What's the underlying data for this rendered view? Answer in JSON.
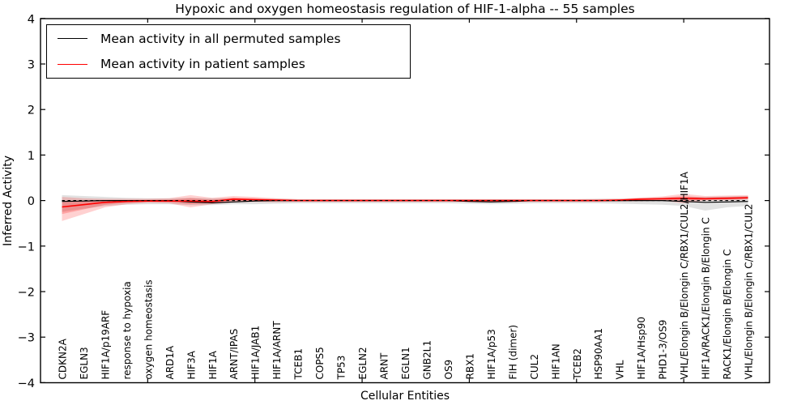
{
  "title": "Hypoxic and oxygen homeostasis regulation of HIF-1-alpha -- 55 samples",
  "axes": {
    "xlabel": "Cellular Entities",
    "ylabel": "Inferred Activity",
    "ytick_labels": [
      "4",
      "3",
      "2",
      "1",
      "0",
      "−1",
      "−2",
      "−3",
      "−4"
    ]
  },
  "legend": {
    "items": [
      {
        "label": "Mean activity in all permuted samples",
        "color": "#000000"
      },
      {
        "label": "Mean activity in patient samples",
        "color": "#ff0000"
      }
    ]
  },
  "colors": {
    "permuted_line": "#000000",
    "patient_line": "#ff0000",
    "permuted_band": "#aaaaaa",
    "patient_band": "#ff0000",
    "baseline": "#000000",
    "background": "#ffffff"
  },
  "chart_data": {
    "type": "line",
    "title": "Hypoxic and oxygen homeostasis regulation of HIF-1-alpha -- 55 samples",
    "xlabel": "Cellular Entities",
    "ylabel": "Inferred Activity",
    "ylim": [
      -4,
      4
    ],
    "yticks": [
      -4,
      -3,
      -2,
      -1,
      0,
      1,
      2,
      3,
      4
    ],
    "grid": false,
    "legend_position": "upper left",
    "baseline": {
      "y": 0,
      "style": "dashed",
      "color": "#000000"
    },
    "categories": [
      "CDKN2A",
      "EGLN3",
      "HIF1A/p19ARF",
      "response to hypoxia",
      "oxygen homeostasis",
      "ARD1A",
      "HIF3A",
      "HIF1A",
      "ARNT/IPAS",
      "HIF1A/JAB1",
      "HIF1A/ARNT",
      "TCEB1",
      "COPS5",
      "TP53",
      "EGLN2",
      "ARNT",
      "EGLN1",
      "GNB2L1",
      "OS9",
      "RBX1",
      "HIF1A/p53",
      "FIH (dimer)",
      "CUL2",
      "HIF1AN",
      "TCEB2",
      "HSP90AA1",
      "VHL",
      "HIF1A/Hsp90",
      "PHD1-3/OS9",
      "VHL/Elongin B/Elongin C/RBX1/CUL2/HIF1A",
      "HIF1A/RACK1/Elongin B/Elongin C",
      "RACK1/Elongin B/Elongin C",
      "VHL/Elongin B/Elongin C/RBX1/CUL2"
    ],
    "series": [
      {
        "name": "Mean activity in all permuted samples",
        "color": "#000000",
        "style": "solid",
        "values": [
          -0.02,
          -0.01,
          0,
          0,
          0,
          0,
          -0.03,
          -0.05,
          -0.03,
          -0.01,
          0,
          0,
          0,
          0,
          0,
          0,
          0,
          0,
          0,
          -0.02,
          -0.03,
          -0.02,
          0,
          0,
          0,
          0,
          0,
          0,
          0,
          -0.02,
          -0.04,
          -0.03,
          -0.02
        ]
      },
      {
        "name": "Mean activity in patient samples",
        "color": "#ff0000",
        "style": "solid",
        "values": [
          -0.14,
          -0.09,
          -0.04,
          -0.02,
          -0.01,
          -0.01,
          -0.01,
          -0.02,
          0.03,
          0.02,
          0.01,
          0,
          0,
          0,
          0,
          0,
          0,
          0,
          0,
          0,
          0,
          0,
          0,
          0,
          0,
          0,
          0.01,
          0.03,
          0.04,
          0.05,
          0.04,
          0.05,
          0.06
        ]
      }
    ],
    "bands": [
      {
        "name": "permuted sample range",
        "color": "#aaaaaa",
        "opacity": 0.35,
        "lo": [
          -0.25,
          -0.18,
          -0.12,
          -0.09,
          -0.08,
          -0.08,
          -0.1,
          -0.1,
          -0.08,
          -0.08,
          -0.07,
          -0.06,
          -0.06,
          -0.06,
          -0.06,
          -0.06,
          -0.06,
          -0.06,
          -0.06,
          -0.07,
          -0.08,
          -0.07,
          -0.06,
          -0.06,
          -0.06,
          -0.06,
          -0.07,
          -0.08,
          -0.09,
          -0.12,
          -0.22,
          -0.15,
          -0.12
        ],
        "hi": [
          0.12,
          0.1,
          0.08,
          0.06,
          0.05,
          0.05,
          0.06,
          0.05,
          0.05,
          0.04,
          0.04,
          0.03,
          0.03,
          0.03,
          0.03,
          0.03,
          0.03,
          0.03,
          0.03,
          0.03,
          0.03,
          0.03,
          0.03,
          0.03,
          0.03,
          0.04,
          0.04,
          0.05,
          0.06,
          0.08,
          0.08,
          0.09,
          0.1
        ]
      },
      {
        "name": "patient sample range",
        "color": "#ff0000",
        "opacity": 0.18,
        "lo": [
          -0.45,
          -0.3,
          -0.15,
          -0.08,
          -0.05,
          -0.06,
          -0.15,
          -0.08,
          -0.04,
          -0.03,
          -0.04,
          -0.03,
          -0.03,
          -0.03,
          -0.03,
          -0.03,
          -0.03,
          -0.03,
          -0.03,
          -0.03,
          -0.03,
          -0.03,
          -0.03,
          -0.03,
          -0.03,
          -0.03,
          -0.02,
          -0.01,
          0,
          -0.06,
          0,
          0,
          0.02
        ],
        "hi": [
          0.08,
          0.05,
          0.04,
          0.04,
          0.04,
          0.05,
          0.12,
          0.06,
          0.1,
          0.08,
          0.05,
          0.03,
          0.03,
          0.03,
          0.03,
          0.03,
          0.03,
          0.03,
          0.03,
          0.03,
          0.03,
          0.03,
          0.03,
          0.03,
          0.03,
          0.03,
          0.04,
          0.07,
          0.09,
          0.15,
          0.1,
          0.11,
          0.12
        ]
      }
    ]
  }
}
